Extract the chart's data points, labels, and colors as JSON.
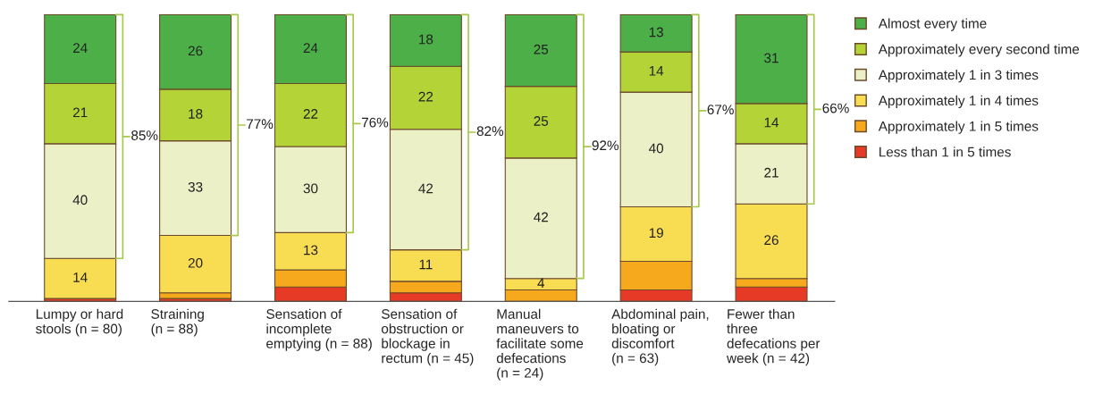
{
  "chart_data": {
    "type": "bar",
    "stacked": true,
    "legend": "right",
    "categories": [
      "Lumpy or hard\nstools (n = 80)",
      "Straining\n(n = 88)",
      "Sensation of\nincomplete\nemptying (n = 88)",
      "Sensation of\nobstruction or\nblockage in\nrectum (n = 45)",
      "Manual\nmaneuvers to\nfacilitate some\ndefecations\n(n = 24)",
      "Abdominal pain,\nbloating or\ndiscomfort\n(n = 63)",
      "Fewer than\nthree\ndefecations per\nweek (n = 42)"
    ],
    "series": [
      {
        "name": "Less than 1 in 5 times",
        "color": "#e63a26",
        "values": [
          1,
          1,
          5,
          3,
          0,
          4,
          5
        ],
        "value_labels": [
          null,
          null,
          null,
          null,
          null,
          null,
          null
        ]
      },
      {
        "name": "Approximately 1 in 5 times",
        "color": "#f6a91c",
        "values": [
          0,
          2,
          6,
          4,
          4,
          10,
          3
        ],
        "value_labels": [
          null,
          null,
          null,
          null,
          null,
          null,
          null
        ]
      },
      {
        "name": "Approximately 1 in 4 times",
        "color": "#f8dc52",
        "values": [
          14,
          20,
          13,
          11,
          4,
          19,
          26
        ],
        "value_labels": [
          "14",
          "20",
          "13",
          "11",
          "4",
          "19",
          "26"
        ]
      },
      {
        "name": "Approximately 1 in 3 times",
        "color": "#ebf0c6",
        "values": [
          40,
          33,
          30,
          42,
          42,
          40,
          21
        ],
        "value_labels": [
          "40",
          "33",
          "30",
          "42",
          "42",
          "40",
          "21"
        ]
      },
      {
        "name": "Approximately every second time",
        "color": "#b4d337",
        "values": [
          21,
          18,
          22,
          22,
          25,
          14,
          14
        ],
        "value_labels": [
          "21",
          "18",
          "22",
          "22",
          "25",
          "14",
          "14"
        ]
      },
      {
        "name": "Almost every time",
        "color": "#4caf48",
        "values": [
          24,
          26,
          24,
          18,
          25,
          13,
          31
        ],
        "value_labels": [
          "24",
          "26",
          "24",
          "18",
          "25",
          "13",
          "31"
        ]
      }
    ],
    "annotations": [
      "85%",
      "77%",
      "76%",
      "82%",
      "92%",
      "67%",
      "66%"
    ]
  }
}
